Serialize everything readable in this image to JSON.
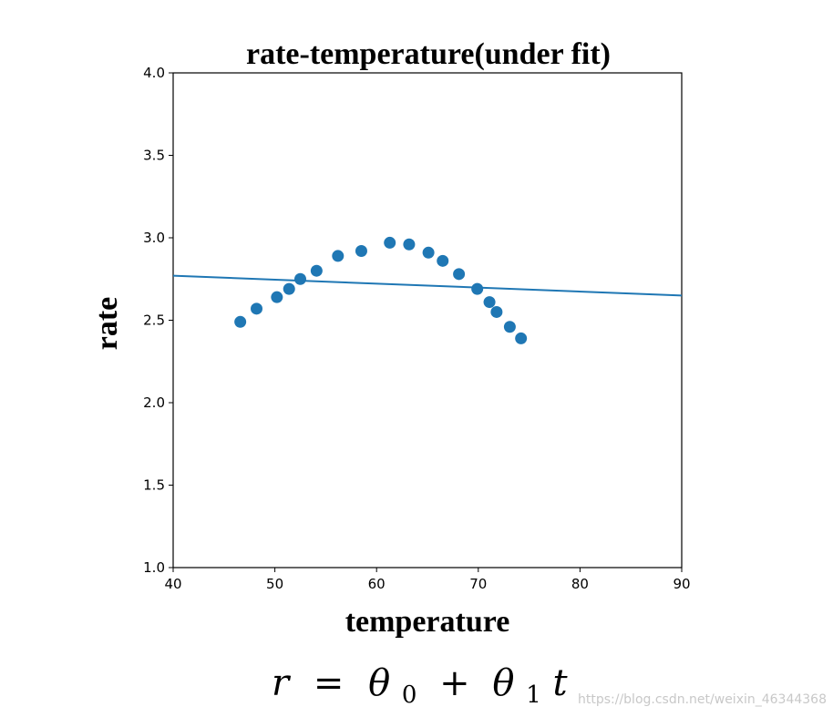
{
  "chart_data": {
    "type": "scatter",
    "title": "rate-temperature(under fit)",
    "xlabel": "temperature",
    "ylabel": "rate",
    "xlim": [
      40,
      90
    ],
    "ylim": [
      1.0,
      4.0
    ],
    "x_ticks": [
      "40",
      "50",
      "60",
      "70",
      "80",
      "90"
    ],
    "y_ticks": [
      "1.0",
      "1.5",
      "2.0",
      "2.5",
      "3.0",
      "3.5",
      "4.0"
    ],
    "grid": false,
    "legend": "none",
    "point_color": "#1f77b4",
    "line_color": "#1f77b4",
    "points": [
      {
        "x": 46.6,
        "y": 2.49
      },
      {
        "x": 48.2,
        "y": 2.57
      },
      {
        "x": 50.2,
        "y": 2.64
      },
      {
        "x": 51.4,
        "y": 2.69
      },
      {
        "x": 52.5,
        "y": 2.75
      },
      {
        "x": 54.1,
        "y": 2.8
      },
      {
        "x": 56.2,
        "y": 2.89
      },
      {
        "x": 58.5,
        "y": 2.92
      },
      {
        "x": 61.3,
        "y": 2.97
      },
      {
        "x": 63.2,
        "y": 2.96
      },
      {
        "x": 65.1,
        "y": 2.91
      },
      {
        "x": 66.5,
        "y": 2.86
      },
      {
        "x": 68.1,
        "y": 2.78
      },
      {
        "x": 69.9,
        "y": 2.69
      },
      {
        "x": 71.1,
        "y": 2.61
      },
      {
        "x": 71.8,
        "y": 2.55
      },
      {
        "x": 73.1,
        "y": 2.46
      },
      {
        "x": 74.2,
        "y": 2.39
      }
    ],
    "fit_line": {
      "x": [
        40,
        90
      ],
      "y": [
        2.77,
        2.65
      ]
    }
  },
  "formula": {
    "r": "r",
    "equals": "=",
    "theta0": "θ",
    "sub0": "0",
    "plus": "+",
    "theta1": "θ",
    "sub1": "1",
    "t": "t"
  },
  "watermark": "https://blog.csdn.net/weixin_46344368"
}
